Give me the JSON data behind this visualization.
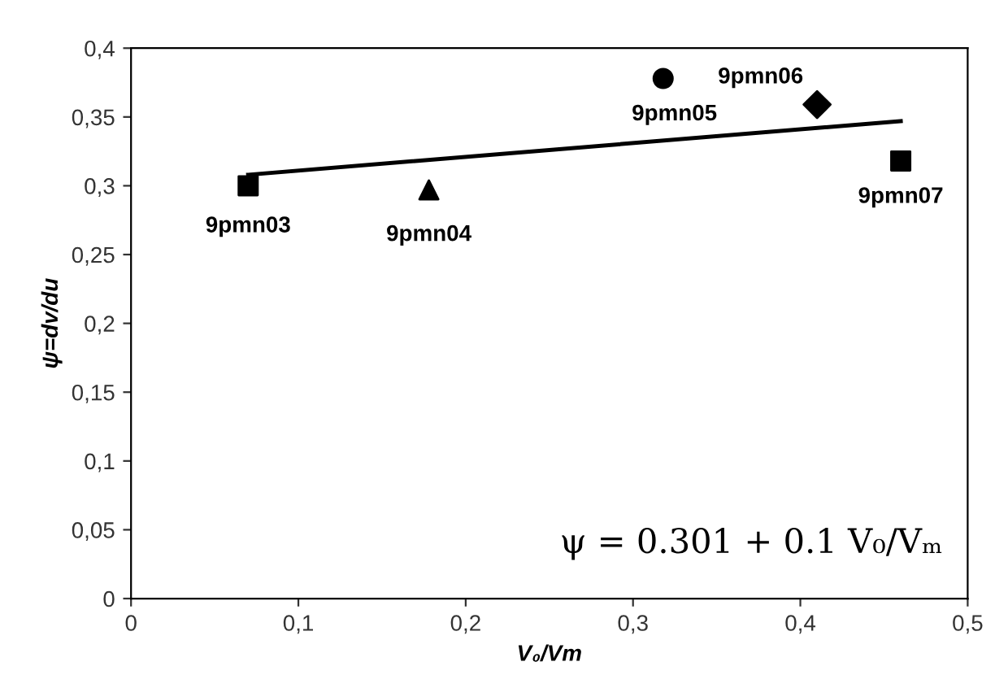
{
  "chart_data": {
    "type": "scatter",
    "xlabel": "V₀/Vm",
    "ylabel": "ψ=dv/du",
    "xlim": [
      0,
      0.5
    ],
    "ylim": [
      0,
      0.4
    ],
    "xticks": [
      0,
      {
        "value": 0.1,
        "label": "0,1"
      },
      {
        "value": 0.2,
        "label": "0,2"
      },
      {
        "value": 0.3,
        "label": "0,3"
      },
      {
        "value": 0.4,
        "label": "0,4"
      },
      {
        "value": 0.5,
        "label": "0,5"
      }
    ],
    "yticks": [
      0,
      {
        "value": 0.05,
        "label": "0,05"
      },
      {
        "value": 0.1,
        "label": "0,1"
      },
      {
        "value": 0.15,
        "label": "0,15"
      },
      {
        "value": 0.2,
        "label": "0,2"
      },
      {
        "value": 0.25,
        "label": "0,25"
      },
      {
        "value": 0.3,
        "label": "0,3"
      },
      {
        "value": 0.35,
        "label": "0,35"
      },
      {
        "value": 0.4,
        "label": "0,4"
      }
    ],
    "grid": false,
    "legend": false,
    "series": [
      {
        "name": "9pmn03",
        "color": "#000000",
        "marker": "square",
        "x": [
          0.07
        ],
        "values": [
          0.3
        ]
      },
      {
        "name": "9pmn04",
        "color": "#000000",
        "marker": "triangle",
        "x": [
          0.178
        ],
        "values": [
          0.297
        ]
      },
      {
        "name": "9pmn05",
        "color": "#000000",
        "marker": "circle",
        "x": [
          0.318
        ],
        "values": [
          0.378
        ]
      },
      {
        "name": "9pmn06",
        "color": "#000000",
        "marker": "diamond",
        "x": [
          0.41
        ],
        "values": [
          0.359
        ]
      },
      {
        "name": "9pmn07",
        "color": "#000000",
        "marker": "square",
        "x": [
          0.46
        ],
        "values": [
          0.318
        ]
      },
      {
        "type": "line",
        "color": "#000000",
        "marker": "none",
        "line_style": "solid",
        "x": [
          0.07,
          0.46
        ],
        "values": [
          0.308,
          0.347
        ]
      }
    ],
    "annotations": [
      "ψ = 0.301 + 0.1 V₀/Vₘ"
    ]
  }
}
